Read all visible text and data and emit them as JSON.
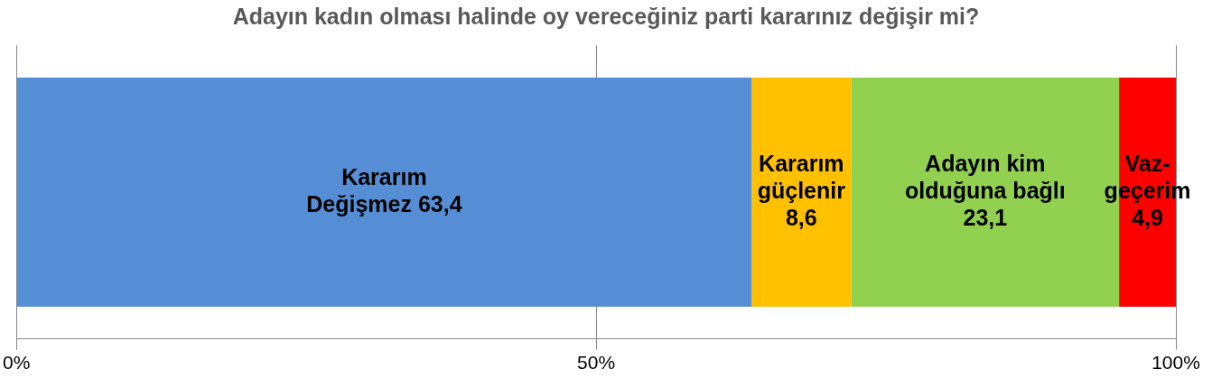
{
  "chart_data": {
    "type": "bar",
    "orientation": "horizontal",
    "stacked": true,
    "title": "Adayın kadın olması halinde oy vereceğiniz parti kararınız değişir mi?",
    "categories": [
      null
    ],
    "series": [
      {
        "name": "Kararım Değişmez",
        "color": "#558ed5",
        "values": [
          63.4
        ],
        "value_labels": [
          "63,4"
        ]
      },
      {
        "name": "Kararım güçlenir",
        "color": "#ffc000",
        "values": [
          8.6
        ],
        "value_labels": [
          "8,6"
        ]
      },
      {
        "name": "Adayın kim olduğuna bağlı",
        "color": "#92d050",
        "values": [
          23.1
        ],
        "value_labels": [
          "23,1"
        ]
      },
      {
        "name": "Vaz-geçerim",
        "color": "#ff0000",
        "values": [
          4.9
        ],
        "value_labels": [
          "4,9"
        ]
      }
    ],
    "xlim": [
      0,
      100
    ],
    "xticks": [
      {
        "value": 0,
        "label": "0%"
      },
      {
        "value": 50,
        "label": "50%"
      },
      {
        "value": 100,
        "label": "100%"
      }
    ],
    "grid": "x",
    "legend": false
  }
}
